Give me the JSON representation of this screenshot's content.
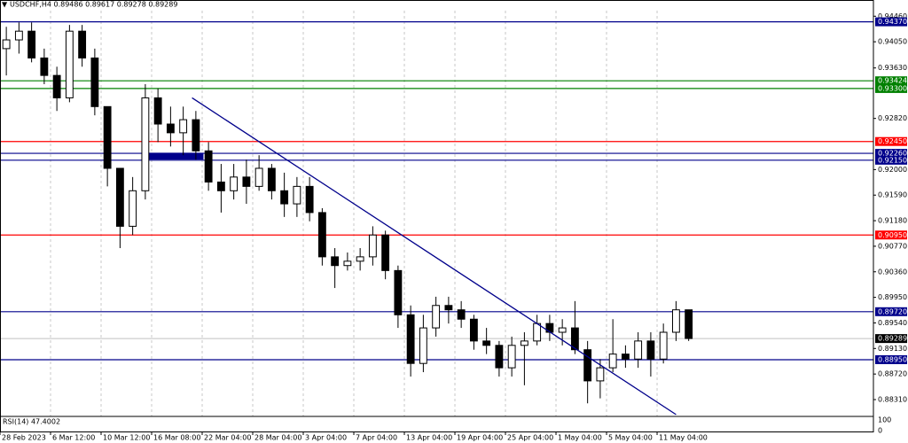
{
  "chart_data": {
    "type": "candlestick",
    "title": "USDCHF,H4  0.89486 0.89617 0.89278 0.89289",
    "candles": [
      [
        0.9394,
        0.9429,
        0.9351,
        0.9408
      ],
      [
        0.9408,
        0.9436,
        0.9386,
        0.9422
      ],
      [
        0.9422,
        0.9436,
        0.9372,
        0.9379
      ],
      [
        0.9379,
        0.9394,
        0.9337,
        0.9351
      ],
      [
        0.9351,
        0.9365,
        0.9294,
        0.9315
      ],
      [
        0.9315,
        0.9432,
        0.9308,
        0.9422
      ],
      [
        0.9422,
        0.9432,
        0.9365,
        0.9379
      ],
      [
        0.9379,
        0.9394,
        0.9287,
        0.9301
      ],
      [
        0.9301,
        0.9301,
        0.9173,
        0.9202
      ],
      [
        0.9202,
        0.9202,
        0.9074,
        0.9109
      ],
      [
        0.9109,
        0.9188,
        0.9095,
        0.9166
      ],
      [
        0.9166,
        0.9337,
        0.9152,
        0.9315
      ],
      [
        0.9315,
        0.933,
        0.9244,
        0.9273
      ],
      [
        0.9273,
        0.9301,
        0.9237,
        0.9259
      ],
      [
        0.9259,
        0.9301,
        0.9223,
        0.928
      ],
      [
        0.928,
        0.9294,
        0.9216,
        0.923
      ],
      [
        0.923,
        0.9244,
        0.9166,
        0.918
      ],
      [
        0.918,
        0.9209,
        0.9131,
        0.9166
      ],
      [
        0.9166,
        0.9209,
        0.9152,
        0.9188
      ],
      [
        0.9188,
        0.9216,
        0.9145,
        0.9173
      ],
      [
        0.9173,
        0.9223,
        0.9166,
        0.9202
      ],
      [
        0.9202,
        0.9209,
        0.9152,
        0.9166
      ],
      [
        0.9166,
        0.9195,
        0.9124,
        0.9145
      ],
      [
        0.9145,
        0.9188,
        0.9124,
        0.9173
      ],
      [
        0.9173,
        0.9188,
        0.9117,
        0.9131
      ],
      [
        0.9131,
        0.9138,
        0.9046,
        0.906
      ],
      [
        0.906,
        0.9074,
        0.901,
        0.9046
      ],
      [
        0.9046,
        0.9067,
        0.9038,
        0.9053
      ],
      [
        0.9053,
        0.9074,
        0.9038,
        0.906
      ],
      [
        0.906,
        0.9109,
        0.9046,
        0.9095
      ],
      [
        0.9095,
        0.9102,
        0.9024,
        0.9038
      ],
      [
        0.9038,
        0.9046,
        0.8946,
        0.8967
      ],
      [
        0.8967,
        0.8982,
        0.8868,
        0.8889
      ],
      [
        0.8889,
        0.8967,
        0.8875,
        0.8946
      ],
      [
        0.8946,
        0.8996,
        0.8932,
        0.8982
      ],
      [
        0.8982,
        0.8996,
        0.8953,
        0.8975
      ],
      [
        0.8975,
        0.8989,
        0.8946,
        0.896
      ],
      [
        0.896,
        0.8967,
        0.8911,
        0.8925
      ],
      [
        0.8925,
        0.8946,
        0.8904,
        0.8918
      ],
      [
        0.8918,
        0.8925,
        0.8868,
        0.8882
      ],
      [
        0.8882,
        0.8932,
        0.8868,
        0.8918
      ],
      [
        0.8918,
        0.8939,
        0.8854,
        0.8925
      ],
      [
        0.8925,
        0.8967,
        0.8918,
        0.8953
      ],
      [
        0.8953,
        0.8967,
        0.8925,
        0.8939
      ],
      [
        0.8939,
        0.896,
        0.8918,
        0.8946
      ],
      [
        0.8946,
        0.8989,
        0.8904,
        0.8911
      ],
      [
        0.8911,
        0.8925,
        0.8825,
        0.8861
      ],
      [
        0.8861,
        0.8896,
        0.8833,
        0.8882
      ],
      [
        0.8882,
        0.896,
        0.8875,
        0.8904
      ],
      [
        0.8904,
        0.8918,
        0.8882,
        0.8896
      ],
      [
        0.8896,
        0.8939,
        0.8882,
        0.8925
      ],
      [
        0.8925,
        0.8939,
        0.8868,
        0.8896
      ],
      [
        0.8896,
        0.8953,
        0.8889,
        0.8939
      ],
      [
        0.8939,
        0.8989,
        0.8925,
        0.8975
      ],
      [
        0.8975,
        0.8975,
        0.8925,
        0.8929
      ]
    ],
    "ylim": [
      0.8804,
      0.9472
    ],
    "yticks": [
      {
        "value": 0.9446,
        "label": "0.94460"
      },
      {
        "value": 0.9405,
        "label": "0.94050"
      },
      {
        "value": 0.9363,
        "label": "0.93630"
      },
      {
        "value": 0.9282,
        "label": "0.92820"
      },
      {
        "value": 0.92,
        "label": "0.92000"
      },
      {
        "value": 0.9159,
        "label": "0.91590"
      },
      {
        "value": 0.9118,
        "label": "0.91180"
      },
      {
        "value": 0.9077,
        "label": "0.90770"
      },
      {
        "value": 0.9036,
        "label": "0.90360"
      },
      {
        "value": 0.8995,
        "label": "0.89950"
      },
      {
        "value": 0.8954,
        "label": "0.89540"
      },
      {
        "value": 0.8913,
        "label": "0.89130"
      },
      {
        "value": 0.8872,
        "label": "0.88720"
      },
      {
        "value": 0.8831,
        "label": "0.88310"
      }
    ],
    "xlim": [
      0,
      69.12
    ],
    "xticks": [
      {
        "value": 0,
        "label": "28 Feb 2023"
      },
      {
        "value": 4,
        "label": "6 Mar 12:00"
      },
      {
        "value": 8,
        "label": "10 Mar 12:00"
      },
      {
        "value": 12,
        "label": "16 Mar 08:00"
      },
      {
        "value": 16,
        "label": "22 Mar 04:00"
      },
      {
        "value": 20,
        "label": "28 Mar 04:00"
      },
      {
        "value": 24,
        "label": "3 Apr 04:00"
      },
      {
        "value": 28,
        "label": "7 Apr 04:00"
      },
      {
        "value": 32,
        "label": "13 Apr 04:00"
      },
      {
        "value": 36,
        "label": "19 Apr 04:00"
      },
      {
        "value": 40,
        "label": "25 Apr 04:00"
      },
      {
        "value": 44,
        "label": "1 May 04:00"
      },
      {
        "value": 48,
        "label": "5 May 04:00"
      },
      {
        "value": 52,
        "label": "11 May 04:00"
      }
    ],
    "grid": true,
    "levels": [
      {
        "value": 0.9437,
        "label": "0.94370",
        "color": "#00008b"
      },
      {
        "value": 0.93424,
        "label": "0.93424",
        "color": "#008000"
      },
      {
        "value": 0.933,
        "label": "0.93300",
        "color": "#008000"
      },
      {
        "value": 0.9245,
        "label": "0.92450",
        "color": "#ff0000"
      },
      {
        "value": 0.9226,
        "label": "0.92260",
        "color": "#00008b"
      },
      {
        "value": 0.9215,
        "label": "0.92150",
        "color": "#00008b"
      },
      {
        "value": 0.9095,
        "label": "0.90950",
        "color": "#ff0000"
      },
      {
        "value": 0.8972,
        "label": "0.89720",
        "color": "#00008b"
      },
      {
        "value": 0.8895,
        "label": "0.88950",
        "color": "#00008b"
      }
    ],
    "current_price": {
      "value": 0.89289,
      "label": "0.89289"
    },
    "trendline": {
      "x": [
        15.2,
        53.5
      ],
      "y": [
        0.9315,
        0.8807
      ],
      "color": "#00008b"
    },
    "zone": {
      "x": [
        11.4,
        16.1
      ],
      "y": [
        0.9216,
        0.9227
      ],
      "color": "#00008b"
    },
    "rsi": {
      "label": "RSI(14) 47.4002",
      "ylim": [
        0,
        100
      ],
      "yticks": [
        100,
        0
      ]
    }
  }
}
